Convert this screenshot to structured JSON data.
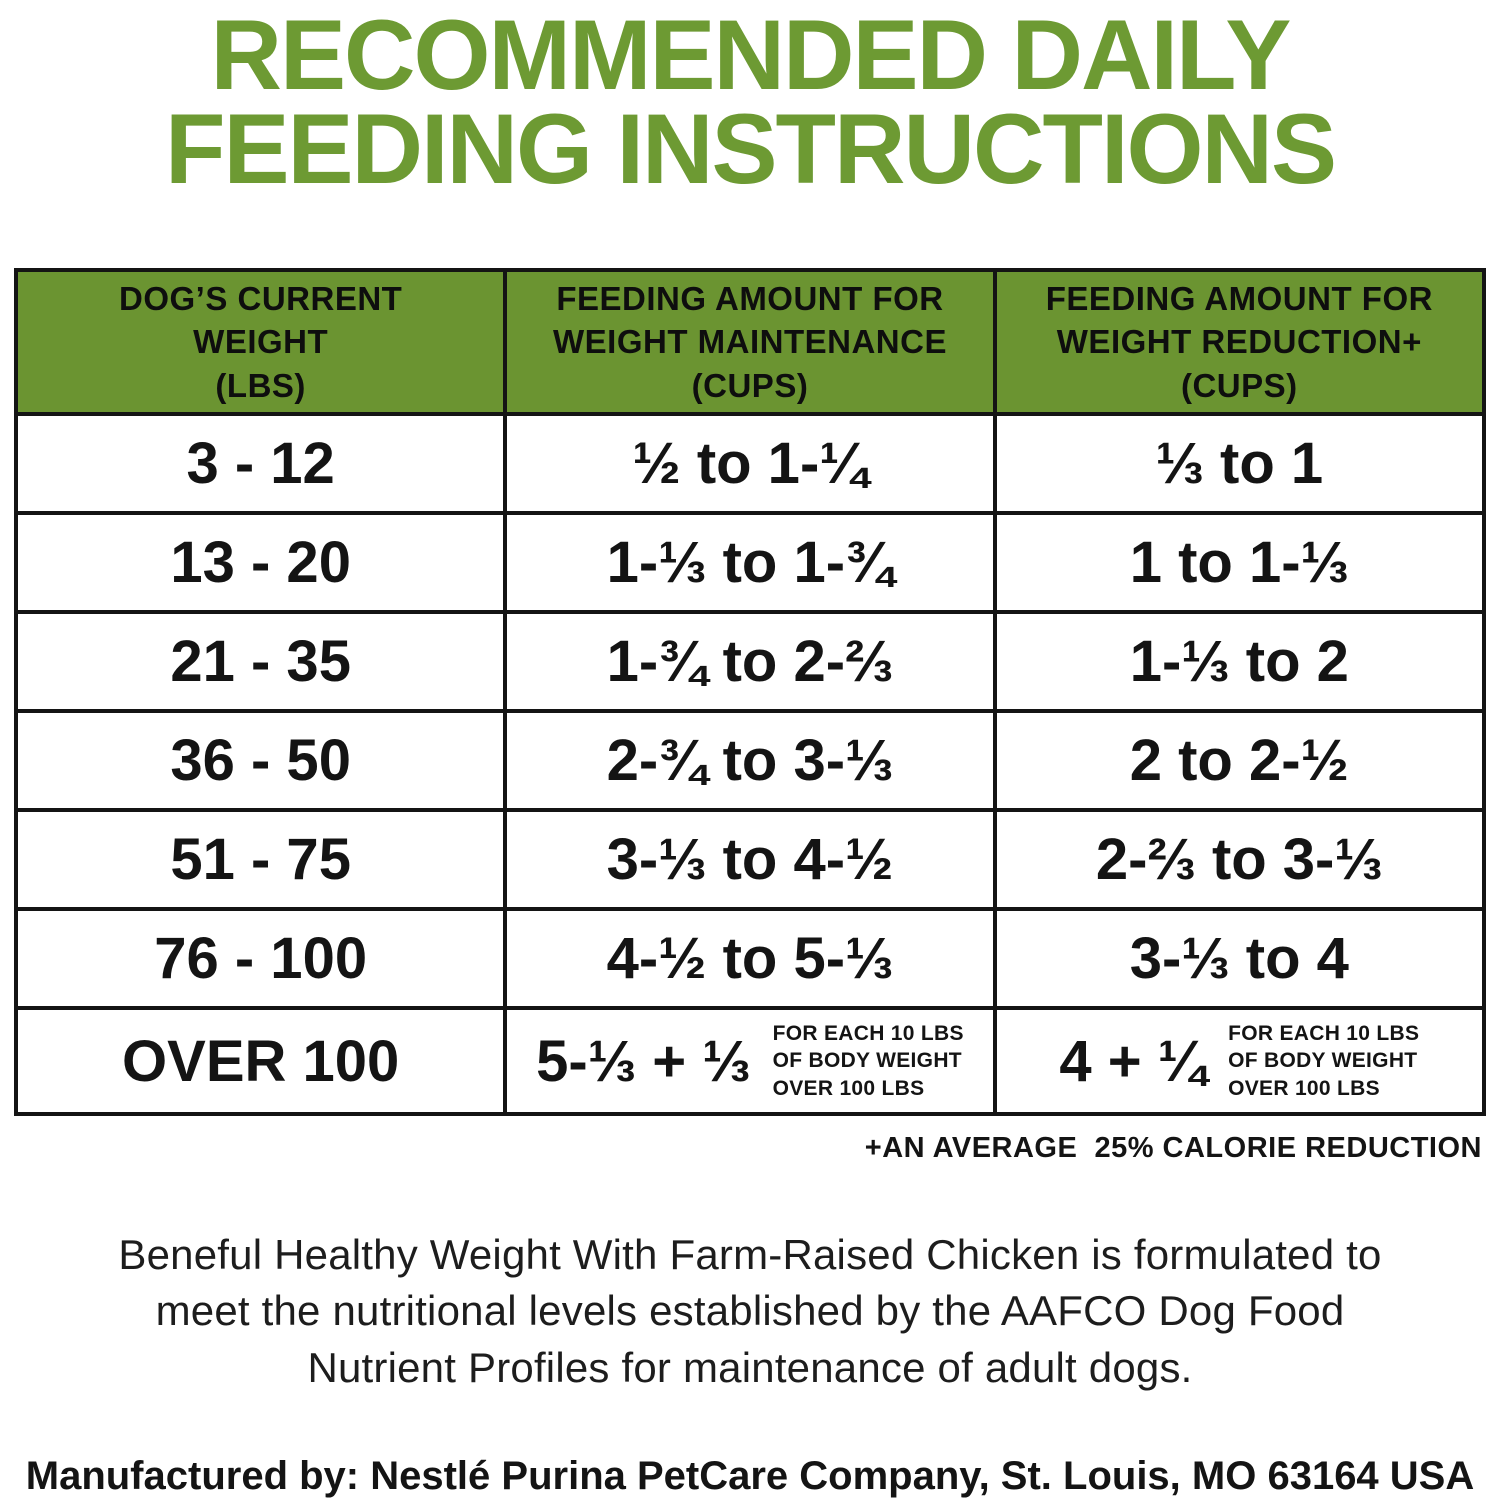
{
  "colors": {
    "title_green": "#6d9a33",
    "header_bg": "#6b9431",
    "border": "#141414",
    "text": "#141414"
  },
  "title": {
    "line1": "RECOMMENDED DAILY",
    "line2": "FEEDING INSTRUCTIONS"
  },
  "table": {
    "headers": [
      "DOG’S CURRENT\nWEIGHT\n(LBS)",
      "FEEDING AMOUNT FOR\nWEIGHT MAINTENANCE\n(CUPS)",
      "FEEDING AMOUNT FOR\nWEIGHT REDUCTION+\n(CUPS)"
    ],
    "rows": [
      {
        "weight": "3 - 12",
        "maintenance": "½ to 1-¼",
        "reduction": "⅓ to 1"
      },
      {
        "weight": "13 - 20",
        "maintenance": "1-⅓ to 1-¾",
        "reduction": "1 to 1-⅓"
      },
      {
        "weight": "21 - 35",
        "maintenance": "1-¾ to 2-⅔",
        "reduction": "1-⅓ to 2"
      },
      {
        "weight": "36 - 50",
        "maintenance": "2-¾ to 3-⅓",
        "reduction": "2 to 2-½"
      },
      {
        "weight": "51 - 75",
        "maintenance": "3-⅓ to 4-½",
        "reduction": "2-⅔ to 3-⅓"
      },
      {
        "weight": "76 - 100",
        "maintenance": "4-½ to 5-⅓",
        "reduction": "3-⅓ to 4"
      }
    ],
    "last_row": {
      "weight": "OVER 100",
      "maintenance_main": "5-⅓ + ⅓",
      "maintenance_note": "FOR EACH 10 LBS\nOF BODY WEIGHT\nOVER 100 LBS",
      "reduction_main": "4 + ¼",
      "reduction_note": "FOR EACH 10 LBS\nOF BODY WEIGHT\nOVER 100 LBS"
    },
    "footnote": "+AN AVERAGE  25% CALORIE REDUCTION"
  },
  "body": {
    "paragraph": "Beneful Healthy Weight With Farm-Raised Chicken is formulated to\nmeet the nutritional levels established by the AAFCO Dog Food\nNutrient Profiles for maintenance of adult dogs.",
    "manufacturer": "Manufactured by: Nestlé Purina PetCare Company, St. Louis, MO 63164 USA"
  }
}
